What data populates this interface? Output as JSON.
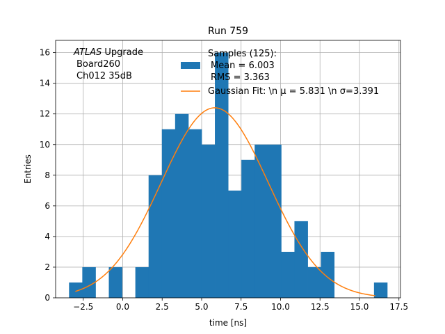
{
  "chart_data": {
    "type": "bar",
    "title": "Run 759",
    "xlabel": "time [ns]",
    "ylabel": "Entries",
    "xlim": [
      -4.25,
      17.6
    ],
    "ylim": [
      0,
      16.8
    ],
    "grid": true,
    "x_ticks": [
      -2.5,
      0.0,
      2.5,
      5.0,
      7.5,
      10.0,
      12.5,
      15.0,
      17.5
    ],
    "x_tick_labels": [
      "−2.5",
      "0.0",
      "2.5",
      "5.0",
      "7.5",
      "10.0",
      "12.5",
      "15.0",
      "17.5"
    ],
    "y_ticks": [
      0,
      2,
      4,
      6,
      8,
      10,
      12,
      14,
      16
    ],
    "y_tick_labels": [
      "0",
      "2",
      "4",
      "6",
      "8",
      "10",
      "12",
      "14",
      "16"
    ],
    "annotation": {
      "experiment": "ATLAS",
      "line1_rest": " Upgrade",
      "line2": "Board260",
      "line3": "Ch012 35dB"
    },
    "histogram": {
      "name_lines": [
        "Samples (125):",
        "Mean = 6.003",
        "RMS = 3.363"
      ],
      "color": "#1f77b4",
      "bin_edges": [
        -3.4,
        -2.56,
        -1.72,
        -0.88,
        -0.04,
        0.8,
        1.64,
        2.48,
        3.32,
        4.16,
        5.0,
        5.84,
        6.68,
        7.52,
        8.36,
        9.2,
        10.04,
        10.88,
        11.72,
        12.56,
        13.4,
        14.24,
        15.08,
        15.92,
        16.76
      ],
      "counts": [
        1,
        2,
        0,
        2,
        0,
        2,
        8,
        11,
        12,
        11,
        10,
        16,
        7,
        9,
        10,
        10,
        3,
        5,
        2,
        3,
        0,
        0,
        0,
        1
      ]
    },
    "fit": {
      "name": "Gaussian Fit: \\n μ = 5.831 \\n σ=3.391",
      "color": "#ff7f0e",
      "mu": 5.831,
      "sigma": 3.391,
      "amplitude": 12.4,
      "x_range": [
        -3.0,
        16.0
      ]
    },
    "legend_position": "top-right"
  }
}
